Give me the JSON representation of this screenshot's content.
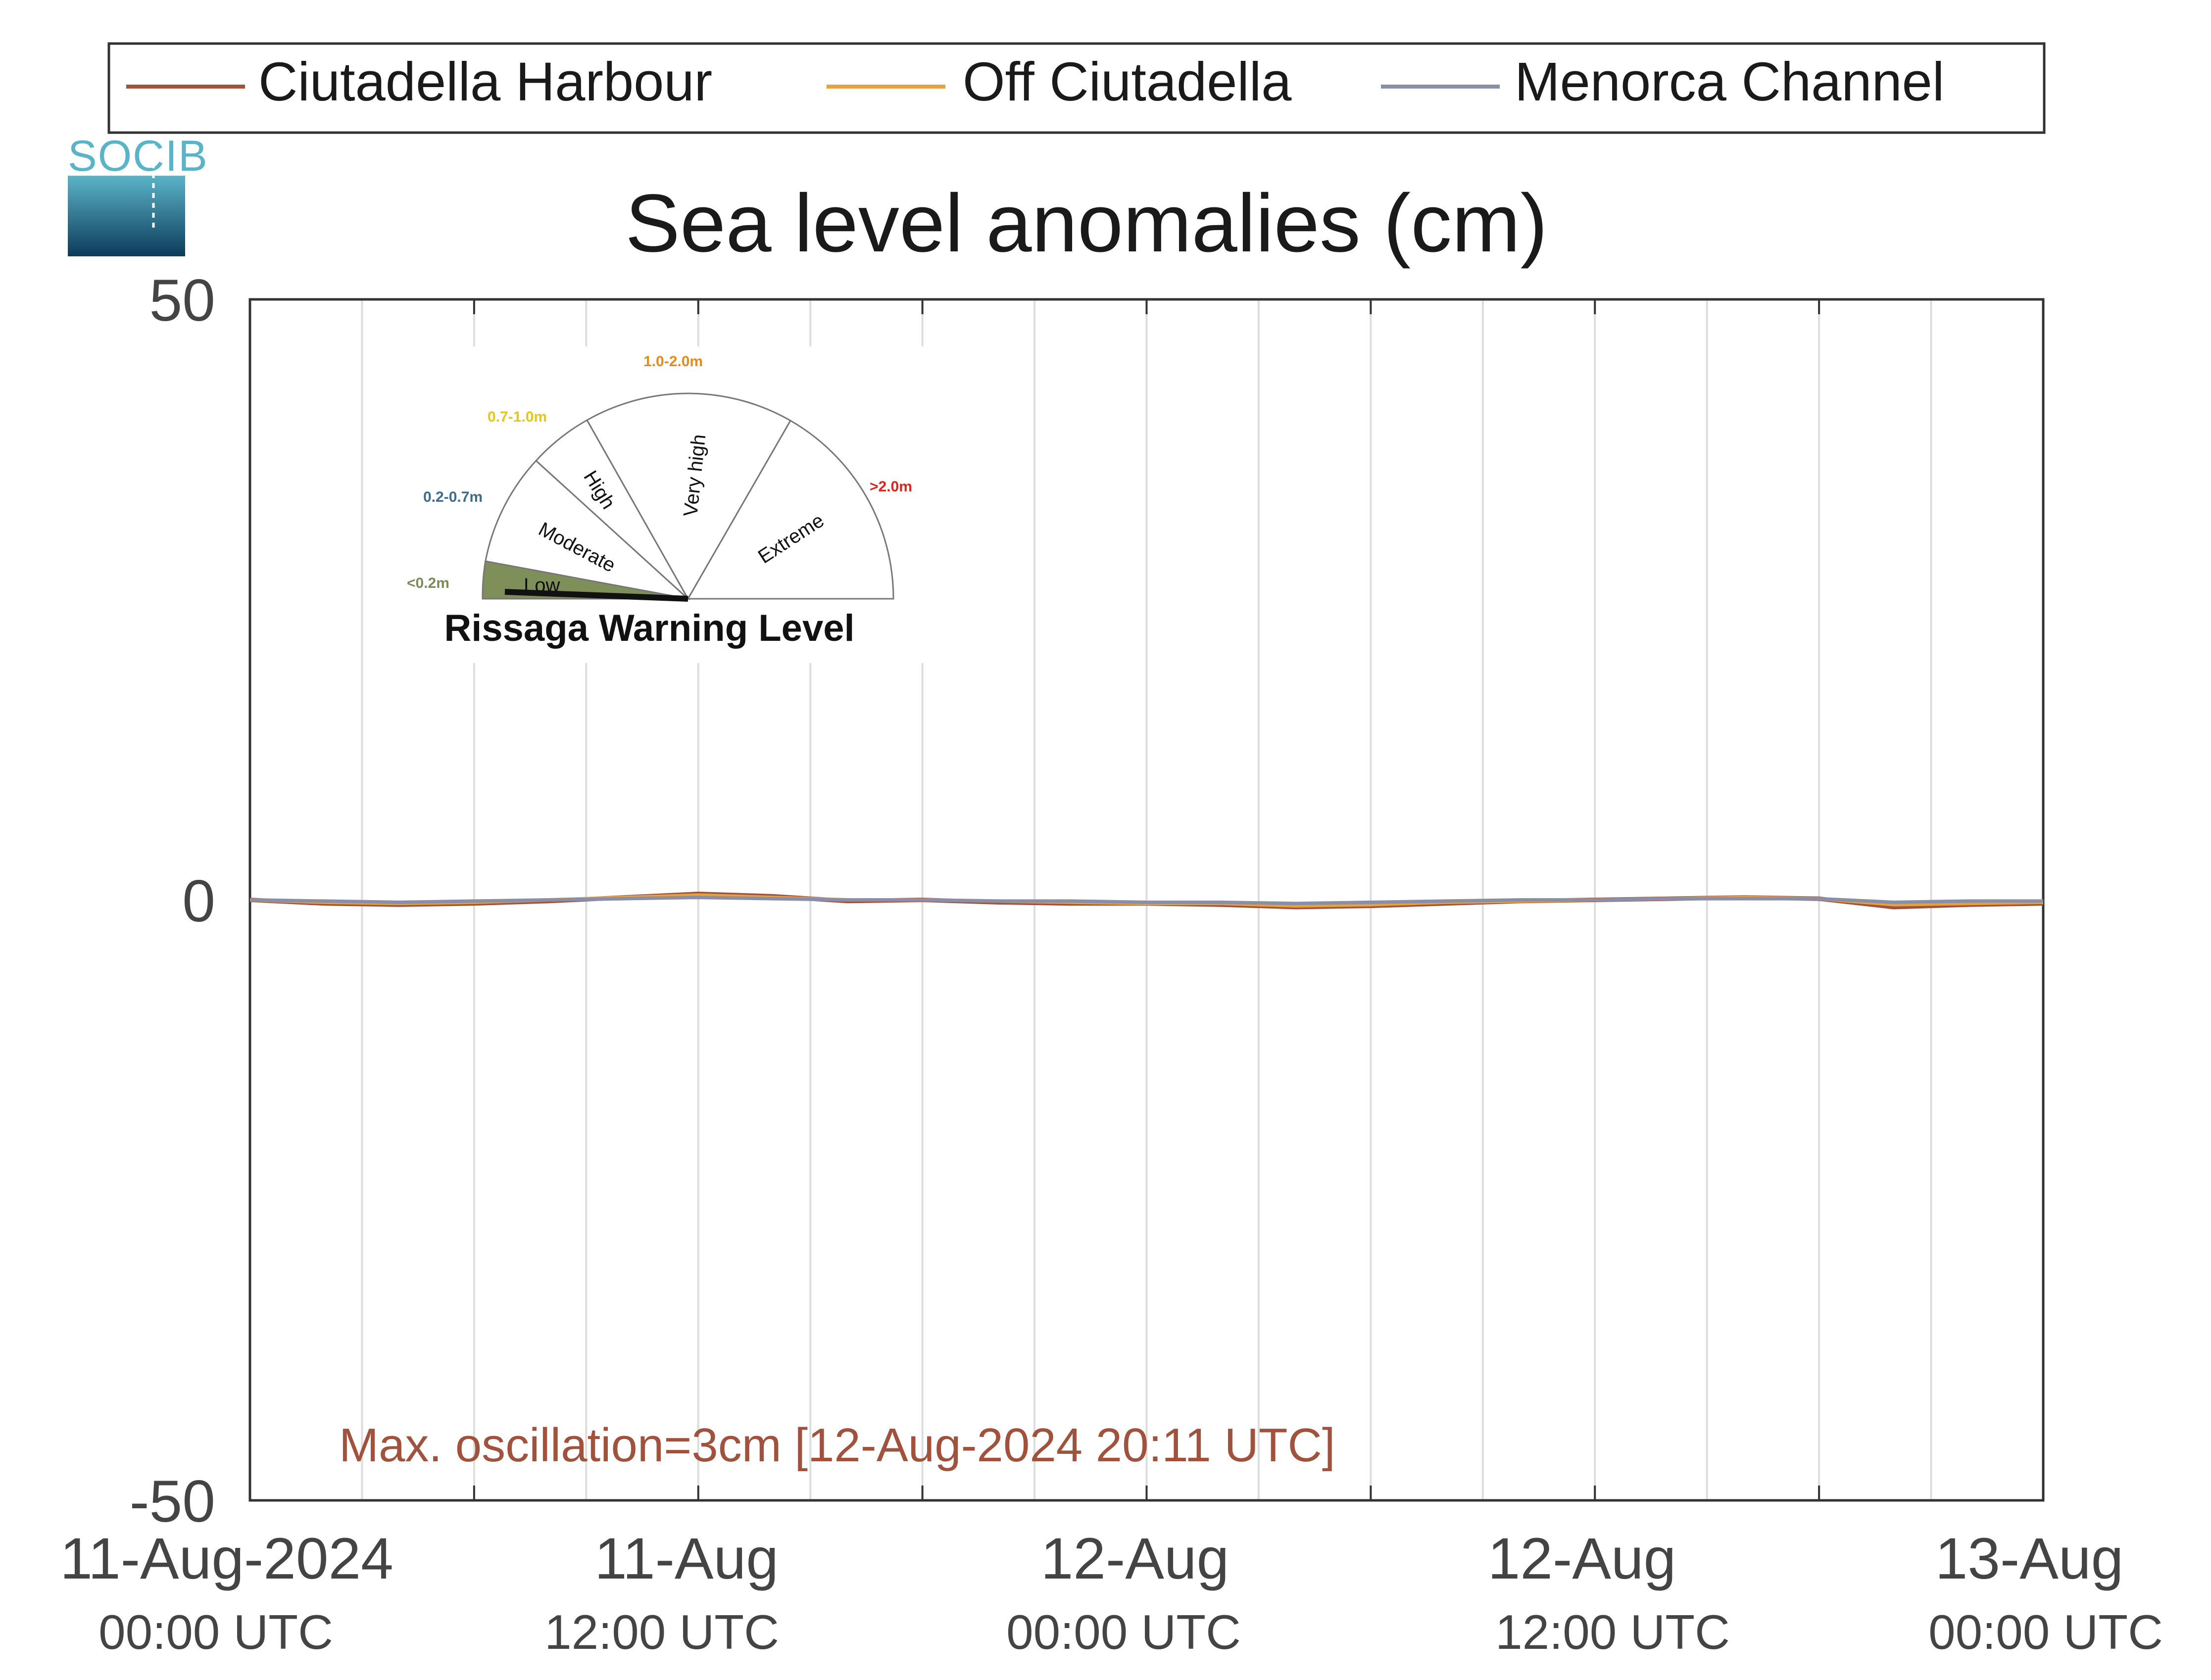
{
  "chart_data": {
    "type": "line",
    "title": "Sea level anomalies (cm)",
    "xlabel": "",
    "ylabel": "",
    "ylim": [
      -50,
      50
    ],
    "yticks": [
      "50",
      "0",
      "-50"
    ],
    "xlim": [
      "2024-08-11T00:00Z",
      "2024-08-13T00:00Z"
    ],
    "xticks": [
      {
        "date": "11-Aug-2024",
        "time": "00:00 UTC"
      },
      {
        "date": "11-Aug",
        "time": "12:00 UTC"
      },
      {
        "date": "12-Aug",
        "time": "00:00 UTC"
      },
      {
        "date": "12-Aug",
        "time": "12:00 UTC"
      },
      {
        "date": "13-Aug",
        "time": "00:00 UTC"
      }
    ],
    "grid": true,
    "legend_position": "top",
    "series": [
      {
        "name": "Ciutadella Harbour",
        "color": "#a0523d",
        "points": [
          [
            "2024-08-11T00:00Z",
            0
          ],
          [
            "2024-08-11T02:00Z",
            -0.3
          ],
          [
            "2024-08-11T04:00Z",
            -0.4
          ],
          [
            "2024-08-11T06:00Z",
            -0.3
          ],
          [
            "2024-08-11T08:00Z",
            -0.1
          ],
          [
            "2024-08-11T10:00Z",
            0.2
          ],
          [
            "2024-08-11T12:00Z",
            0.5
          ],
          [
            "2024-08-11T14:00Z",
            0.3
          ],
          [
            "2024-08-11T16:00Z",
            -0.1
          ],
          [
            "2024-08-11T18:00Z",
            0
          ],
          [
            "2024-08-11T20:00Z",
            -0.2
          ],
          [
            "2024-08-11T22:00Z",
            -0.3
          ],
          [
            "2024-08-12T00:00Z",
            -0.3
          ],
          [
            "2024-08-12T02:00Z",
            -0.4
          ],
          [
            "2024-08-12T04:00Z",
            -0.6
          ],
          [
            "2024-08-12T06:00Z",
            -0.5
          ],
          [
            "2024-08-12T08:00Z",
            -0.3
          ],
          [
            "2024-08-12T10:00Z",
            -0.1
          ],
          [
            "2024-08-12T12:00Z",
            0
          ],
          [
            "2024-08-12T14:00Z",
            0.1
          ],
          [
            "2024-08-12T16:00Z",
            0.2
          ],
          [
            "2024-08-12T18:00Z",
            0.1
          ],
          [
            "2024-08-12T20:00Z",
            -0.6
          ],
          [
            "2024-08-12T22:00Z",
            -0.4
          ],
          [
            "2024-08-13T00:00Z",
            -0.3
          ]
        ]
      },
      {
        "name": "Off Ciutadella",
        "color": "#e6a23c",
        "points": [
          [
            "2024-08-11T00:00Z",
            0
          ],
          [
            "2024-08-11T02:00Z",
            -0.2
          ],
          [
            "2024-08-11T04:00Z",
            -0.3
          ],
          [
            "2024-08-11T06:00Z",
            -0.2
          ],
          [
            "2024-08-11T08:00Z",
            0
          ],
          [
            "2024-08-11T10:00Z",
            0.2
          ],
          [
            "2024-08-11T12:00Z",
            0.4
          ],
          [
            "2024-08-11T14:00Z",
            0.2
          ],
          [
            "2024-08-11T16:00Z",
            0
          ],
          [
            "2024-08-11T18:00Z",
            0
          ],
          [
            "2024-08-11T20:00Z",
            -0.1
          ],
          [
            "2024-08-11T22:00Z",
            -0.2
          ],
          [
            "2024-08-12T00:00Z",
            -0.3
          ],
          [
            "2024-08-12T02:00Z",
            -0.3
          ],
          [
            "2024-08-12T04:00Z",
            -0.5
          ],
          [
            "2024-08-12T06:00Z",
            -0.4
          ],
          [
            "2024-08-12T08:00Z",
            -0.2
          ],
          [
            "2024-08-12T10:00Z",
            -0.1
          ],
          [
            "2024-08-12T12:00Z",
            0
          ],
          [
            "2024-08-12T14:00Z",
            0.1
          ],
          [
            "2024-08-12T16:00Z",
            0.2
          ],
          [
            "2024-08-12T18:00Z",
            0.1
          ],
          [
            "2024-08-12T20:00Z",
            -0.4
          ],
          [
            "2024-08-12T22:00Z",
            -0.3
          ],
          [
            "2024-08-13T00:00Z",
            -0.2
          ]
        ]
      },
      {
        "name": "Menorca Channel",
        "color": "#8a8ea8",
        "points": [
          [
            "2024-08-11T00:00Z",
            0
          ],
          [
            "2024-08-11T02:00Z",
            -0.1
          ],
          [
            "2024-08-11T04:00Z",
            -0.2
          ],
          [
            "2024-08-11T06:00Z",
            -0.1
          ],
          [
            "2024-08-11T08:00Z",
            0
          ],
          [
            "2024-08-11T10:00Z",
            0.1
          ],
          [
            "2024-08-11T12:00Z",
            0.2
          ],
          [
            "2024-08-11T14:00Z",
            0.1
          ],
          [
            "2024-08-11T16:00Z",
            0
          ],
          [
            "2024-08-11T18:00Z",
            0
          ],
          [
            "2024-08-11T20:00Z",
            -0.1
          ],
          [
            "2024-08-11T22:00Z",
            -0.1
          ],
          [
            "2024-08-12T00:00Z",
            -0.2
          ],
          [
            "2024-08-12T02:00Z",
            -0.2
          ],
          [
            "2024-08-12T04:00Z",
            -0.3
          ],
          [
            "2024-08-12T06:00Z",
            -0.2
          ],
          [
            "2024-08-12T08:00Z",
            -0.1
          ],
          [
            "2024-08-12T10:00Z",
            0
          ],
          [
            "2024-08-12T12:00Z",
            0
          ],
          [
            "2024-08-12T14:00Z",
            0.1
          ],
          [
            "2024-08-12T16:00Z",
            0.1
          ],
          [
            "2024-08-12T18:00Z",
            0.1
          ],
          [
            "2024-08-12T20:00Z",
            -0.2
          ],
          [
            "2024-08-12T22:00Z",
            -0.1
          ],
          [
            "2024-08-13T00:00Z",
            -0.1
          ]
        ]
      }
    ],
    "annotation": {
      "text": "Max. oscillation=3cm [12-Aug-2024 20:11 UTC]",
      "color": "#a0523d"
    }
  },
  "logo": {
    "text": "SOCIB"
  },
  "gauge": {
    "title": "Rissaga Warning Level",
    "needle_level": "Low",
    "sectors": [
      {
        "name": "Low",
        "range": "<0.2m",
        "range_color": "#7d8a5a",
        "fill": "#7f8f5a"
      },
      {
        "name": "Moderate",
        "range": "0.2-0.7m",
        "range_color": "#3d6d8a",
        "fill": "#ffffff"
      },
      {
        "name": "High",
        "range": "0.7-1.0m",
        "range_color": "#e6c619",
        "fill": "#ffffff"
      },
      {
        "name": "Very high",
        "range": "1.0-2.0m",
        "range_color": "#e68a19",
        "fill": "#ffffff"
      },
      {
        "name": "Extreme",
        "range": ">2.0m",
        "range_color": "#d6281e",
        "fill": "#ffffff"
      }
    ]
  }
}
